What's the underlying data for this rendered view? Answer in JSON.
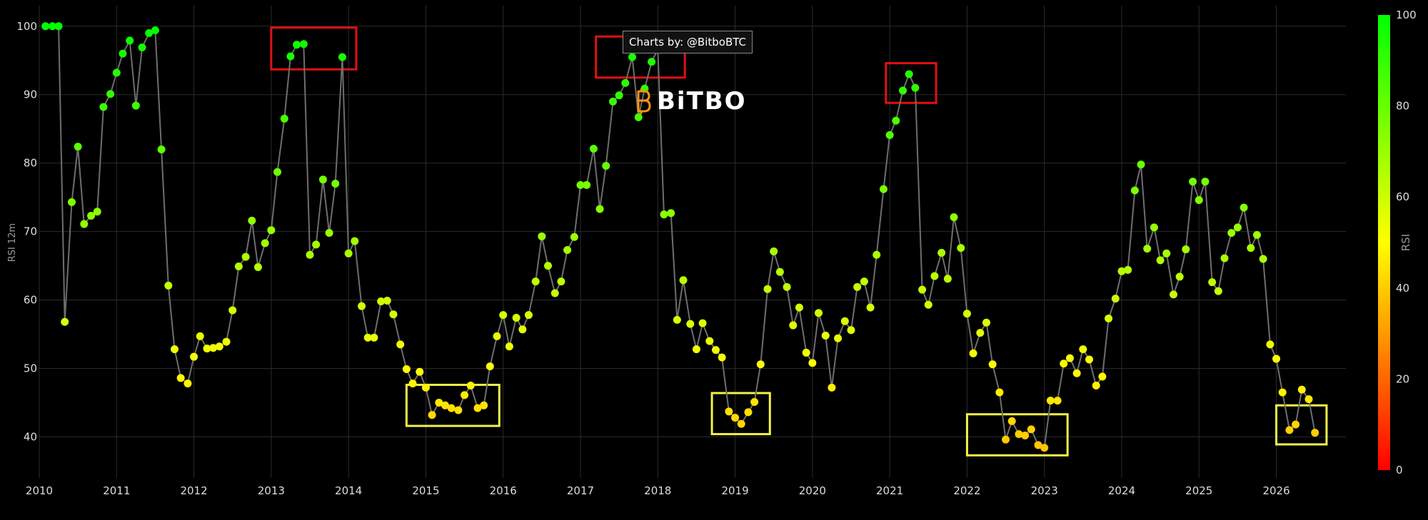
{
  "credit": "Charts by: @BitboBTC",
  "brand": "BiTBO",
  "chart_data": {
    "type": "scatter",
    "ylabel": "RSI 12m",
    "colorbar_label": "RSI",
    "ylim": [
      34,
      103
    ],
    "xlim": [
      2010,
      2026.9
    ],
    "y_ticks": [
      40,
      50,
      60,
      70,
      80,
      90,
      100
    ],
    "x_ticks": [
      2010,
      2011,
      2012,
      2013,
      2014,
      2015,
      2016,
      2017,
      2018,
      2019,
      2020,
      2021,
      2022,
      2023,
      2024,
      2025,
      2026
    ],
    "colorbar_ticks": [
      0,
      20,
      40,
      60,
      80,
      100
    ],
    "grid": true,
    "x": [
      2010.08,
      2010.17,
      2010.25,
      2010.33,
      2010.42,
      2010.5,
      2010.58,
      2010.67,
      2010.75,
      2010.83,
      2010.92,
      2011.0,
      2011.08,
      2011.17,
      2011.25,
      2011.33,
      2011.42,
      2011.5,
      2011.58,
      2011.67,
      2011.75,
      2011.83,
      2011.92,
      2012.0,
      2012.08,
      2012.17,
      2012.25,
      2012.33,
      2012.42,
      2012.5,
      2012.58,
      2012.67,
      2012.75,
      2012.83,
      2012.92,
      2013.0,
      2013.08,
      2013.17,
      2013.25,
      2013.33,
      2013.42,
      2013.5,
      2013.58,
      2013.67,
      2013.75,
      2013.83,
      2013.92,
      2014.0,
      2014.08,
      2014.17,
      2014.25,
      2014.33,
      2014.42,
      2014.5,
      2014.58,
      2014.67,
      2014.75,
      2014.83,
      2014.92,
      2015.0,
      2015.08,
      2015.17,
      2015.25,
      2015.33,
      2015.42,
      2015.5,
      2015.58,
      2015.67,
      2015.75,
      2015.83,
      2015.92,
      2016.0,
      2016.08,
      2016.17,
      2016.25,
      2016.33,
      2016.42,
      2016.5,
      2016.58,
      2016.67,
      2016.75,
      2016.83,
      2016.92,
      2017.0,
      2017.08,
      2017.17,
      2017.25,
      2017.33,
      2017.42,
      2017.5,
      2017.58,
      2017.67,
      2017.75,
      2017.83,
      2017.92,
      2018.0,
      2018.08,
      2018.17,
      2018.25,
      2018.33,
      2018.42,
      2018.5,
      2018.58,
      2018.67,
      2018.75,
      2018.83,
      2018.92,
      2019.0,
      2019.08,
      2019.17,
      2019.25,
      2019.33,
      2019.42,
      2019.5,
      2019.58,
      2019.67,
      2019.75,
      2019.83,
      2019.92,
      2020.0,
      2020.08,
      2020.17,
      2020.25,
      2020.33,
      2020.42,
      2020.5,
      2020.58,
      2020.67,
      2020.75,
      2020.83,
      2020.92,
      2021.0,
      2021.08,
      2021.17,
      2021.25,
      2021.33,
      2021.42,
      2021.5,
      2021.58,
      2021.67,
      2021.75,
      2021.83,
      2021.92,
      2022.0,
      2022.08,
      2022.17,
      2022.25,
      2022.33,
      2022.42,
      2022.5,
      2022.58,
      2022.67,
      2022.75,
      2022.83,
      2022.92,
      2023.0,
      2023.08,
      2023.17,
      2023.25,
      2023.33,
      2023.42,
      2023.5,
      2023.58,
      2023.67,
      2023.75,
      2023.83,
      2023.92,
      2024.0,
      2024.08,
      2024.17,
      2024.25,
      2024.33,
      2024.42,
      2024.5,
      2024.58,
      2024.67,
      2024.75,
      2024.83,
      2024.92,
      2025.0,
      2025.08,
      2025.17,
      2025.25,
      2025.33,
      2025.42,
      2025.5,
      2025.58,
      2025.67,
      2025.75,
      2025.83,
      2025.92,
      2026.0,
      2026.08,
      2026.17,
      2026.25,
      2026.33,
      2026.42,
      2026.5
    ],
    "y": [
      100,
      100,
      100,
      56.8,
      74.3,
      82.4,
      71.1,
      72.3,
      72.9,
      88.2,
      90.1,
      93.2,
      96.0,
      97.9,
      88.4,
      96.9,
      99.0,
      99.4,
      82.0,
      62.1,
      52.8,
      48.6,
      47.8,
      51.7,
      54.7,
      52.9,
      53.0,
      53.2,
      53.9,
      58.5,
      64.9,
      66.3,
      71.6,
      64.8,
      68.3,
      70.2,
      78.7,
      86.5,
      95.6,
      97.3,
      97.4,
      66.6,
      68.1,
      77.6,
      69.8,
      77.0,
      95.5,
      66.8,
      68.6,
      59.1,
      54.5,
      54.5,
      59.8,
      59.9,
      57.9,
      53.5,
      49.9,
      47.8,
      49.5,
      47.2,
      43.2,
      45.0,
      44.6,
      44.2,
      43.9,
      46.1,
      47.5,
      44.2,
      44.6,
      50.3,
      54.7,
      57.8,
      53.2,
      57.4,
      55.7,
      57.8,
      62.7,
      69.3,
      65.0,
      61.0,
      62.7,
      67.3,
      69.2,
      76.8,
      76.8,
      82.1,
      73.3,
      79.6,
      89.0,
      89.9,
      91.7,
      95.5,
      86.7,
      90.9,
      94.8,
      96.6,
      72.5,
      72.7,
      57.1,
      62.9,
      56.5,
      52.8,
      56.6,
      54.0,
      52.7,
      51.6,
      43.7,
      42.8,
      41.9,
      43.6,
      45.1,
      50.6,
      61.6,
      67.1,
      64.1,
      61.9,
      56.3,
      58.9,
      52.3,
      50.8,
      58.1,
      54.8,
      47.2,
      54.4,
      56.9,
      55.6,
      61.9,
      62.7,
      58.9,
      66.6,
      76.2,
      84.1,
      86.2,
      90.6,
      93.0,
      91.0,
      61.5,
      59.3,
      63.5,
      66.9,
      63.1,
      72.1,
      67.6,
      58.0,
      52.2,
      55.2,
      56.7,
      50.6,
      46.5,
      39.6,
      42.3,
      40.4,
      40.2,
      41.1,
      38.8,
      38.4,
      45.3,
      45.3,
      50.7,
      51.5,
      49.3,
      52.8,
      51.3,
      47.5,
      48.8,
      57.3,
      60.2,
      64.2,
      64.4,
      76.0,
      79.8,
      67.5,
      70.6,
      65.8,
      66.8,
      60.8,
      63.4,
      67.4,
      77.3,
      74.6,
      77.3,
      62.6,
      61.3,
      66.1,
      69.8,
      70.6,
      73.5,
      67.6,
      69.5,
      66.0,
      53.5,
      51.4,
      46.5,
      41.0,
      41.8,
      46.9,
      45.5,
      40.6
    ],
    "highlight_boxes_red": [
      [
        2013.0,
        2014.1,
        93.7,
        99.8
      ],
      [
        2017.2,
        2018.35,
        92.5,
        98.5
      ],
      [
        2020.95,
        2021.6,
        88.8,
        94.6
      ]
    ],
    "highlight_boxes_yellow": [
      [
        2014.75,
        2015.95,
        41.6,
        47.6
      ],
      [
        2018.7,
        2019.45,
        40.4,
        46.4
      ],
      [
        2022.0,
        2023.3,
        37.3,
        43.3
      ],
      [
        2026.0,
        2026.65,
        38.9,
        44.6
      ]
    ]
  }
}
